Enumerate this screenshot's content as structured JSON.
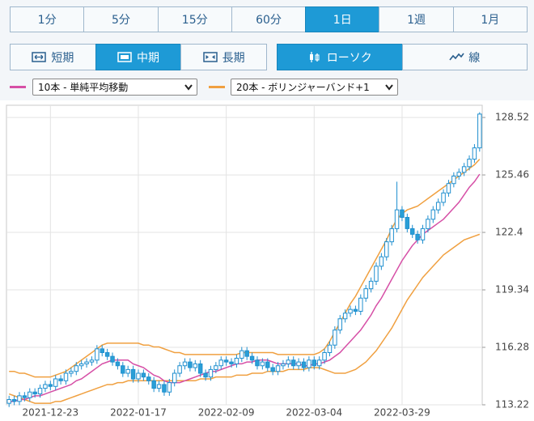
{
  "ui": {
    "timeframes": [
      "1分",
      "5分",
      "15分",
      "60分",
      "1日",
      "1週",
      "1月"
    ],
    "active_timeframe": 4,
    "ranges": [
      "短期",
      "中期",
      "長期"
    ],
    "active_range": 1,
    "chart_types": [
      "ローソク",
      "線"
    ],
    "active_chart_type": 0
  },
  "chart_data": {
    "type": "candlestick",
    "categories": [
      null,
      null,
      null,
      null,
      null,
      null,
      null,
      null,
      "2021-12-23",
      null,
      null,
      null,
      null,
      null,
      null,
      null,
      null,
      null,
      null,
      null,
      null,
      null,
      null,
      null,
      null,
      "2022-01-17",
      null,
      null,
      null,
      null,
      null,
      null,
      null,
      null,
      null,
      null,
      null,
      null,
      null,
      null,
      null,
      null,
      "2022-02-09",
      null,
      null,
      null,
      null,
      null,
      null,
      null,
      null,
      null,
      null,
      null,
      null,
      null,
      null,
      null,
      null,
      "2022-03-04",
      null,
      null,
      null,
      null,
      null,
      null,
      null,
      null,
      null,
      null,
      null,
      null,
      null,
      null,
      null,
      null,
      "2022-03-29",
      null,
      null,
      null,
      null,
      null,
      null,
      null,
      null,
      null,
      null,
      null,
      null,
      null,
      null,
      null
    ],
    "open": [
      113.3,
      113.5,
      113.4,
      113.7,
      113.6,
      113.9,
      113.8,
      114.1,
      114.3,
      114.2,
      114.6,
      114.5,
      114.9,
      115.0,
      115.3,
      115.4,
      115.5,
      115.6,
      116.2,
      116.0,
      115.8,
      115.5,
      115.3,
      114.9,
      115.1,
      114.6,
      114.9,
      114.7,
      114.5,
      114.1,
      114.3,
      113.9,
      114.4,
      114.9,
      115.3,
      115.5,
      115.2,
      115.4,
      114.9,
      114.7,
      115.1,
      115.3,
      115.6,
      115.5,
      115.4,
      115.7,
      116.1,
      115.8,
      115.6,
      115.3,
      115.5,
      115.2,
      115.0,
      115.3,
      115.4,
      115.6,
      115.3,
      115.5,
      115.2,
      115.6,
      115.3,
      115.6,
      116.0,
      116.4,
      117.2,
      117.8,
      118.1,
      118.3,
      118.2,
      118.9,
      119.4,
      119.8,
      120.6,
      121.1,
      121.9,
      122.6,
      123.6,
      123.2,
      122.6,
      122.3,
      122.0,
      122.6,
      123.1,
      123.6,
      124.0,
      124.5,
      125.0,
      125.4,
      125.6,
      125.9,
      126.3,
      126.9
    ],
    "high": [
      113.7,
      113.7,
      113.9,
      113.9,
      114.1,
      114.1,
      114.3,
      114.5,
      114.5,
      114.8,
      114.8,
      115.1,
      115.2,
      115.5,
      115.6,
      115.7,
      115.8,
      116.4,
      116.4,
      116.2,
      116.0,
      115.7,
      115.5,
      115.3,
      115.3,
      115.1,
      115.1,
      114.9,
      114.7,
      114.5,
      114.5,
      114.6,
      115.1,
      115.5,
      115.7,
      115.7,
      115.6,
      115.6,
      115.1,
      115.3,
      115.5,
      115.8,
      115.8,
      115.7,
      115.9,
      116.3,
      116.3,
      116.0,
      115.8,
      115.7,
      115.7,
      115.4,
      115.5,
      115.6,
      115.8,
      115.8,
      115.7,
      115.7,
      115.8,
      115.8,
      115.8,
      116.2,
      116.6,
      117.4,
      118.0,
      118.3,
      118.5,
      118.5,
      119.1,
      119.6,
      120.0,
      120.8,
      121.3,
      122.1,
      122.8,
      125.1,
      123.8,
      123.4,
      122.8,
      122.5,
      122.8,
      123.3,
      123.8,
      124.2,
      124.7,
      125.2,
      125.6,
      125.8,
      126.1,
      126.5,
      127.1,
      128.8
    ],
    "low": [
      113.1,
      113.2,
      113.2,
      113.4,
      113.4,
      113.6,
      113.6,
      113.9,
      114.0,
      114.0,
      114.3,
      114.3,
      114.7,
      114.8,
      115.1,
      115.2,
      115.3,
      115.4,
      115.8,
      115.6,
      115.3,
      115.1,
      114.7,
      114.7,
      114.4,
      114.4,
      114.5,
      114.3,
      113.9,
      113.9,
      113.7,
      113.7,
      114.2,
      114.7,
      115.1,
      115.0,
      115.0,
      114.7,
      114.5,
      114.5,
      114.9,
      115.1,
      115.3,
      115.2,
      115.2,
      115.5,
      115.6,
      115.4,
      115.1,
      115.1,
      115.0,
      114.8,
      114.8,
      115.1,
      115.2,
      115.1,
      115.1,
      115.0,
      115.0,
      115.1,
      115.1,
      115.4,
      115.8,
      116.2,
      117.0,
      117.6,
      117.9,
      118.0,
      118.0,
      118.7,
      119.2,
      119.6,
      120.4,
      120.9,
      121.7,
      122.4,
      123.0,
      122.4,
      122.1,
      121.8,
      121.8,
      122.4,
      122.9,
      123.4,
      123.8,
      124.3,
      124.8,
      125.2,
      125.4,
      125.7,
      126.1,
      126.7
    ],
    "close": [
      113.5,
      113.4,
      113.7,
      113.6,
      113.9,
      113.8,
      114.1,
      114.3,
      114.2,
      114.6,
      114.5,
      114.9,
      115.0,
      115.3,
      115.4,
      115.5,
      115.6,
      116.2,
      116.0,
      115.8,
      115.5,
      115.3,
      114.9,
      115.1,
      114.6,
      114.9,
      114.7,
      114.5,
      114.1,
      114.3,
      113.9,
      114.4,
      114.9,
      115.3,
      115.5,
      115.2,
      115.4,
      114.9,
      114.7,
      115.1,
      115.3,
      115.6,
      115.5,
      115.4,
      115.7,
      116.1,
      115.8,
      115.6,
      115.3,
      115.5,
      115.2,
      115.0,
      115.3,
      115.4,
      115.6,
      115.3,
      115.5,
      115.2,
      115.6,
      115.3,
      115.6,
      116.0,
      116.4,
      117.2,
      117.8,
      118.1,
      118.3,
      118.2,
      118.9,
      119.4,
      119.8,
      120.6,
      121.1,
      121.9,
      122.6,
      123.6,
      123.2,
      122.6,
      122.3,
      122.0,
      122.6,
      123.1,
      123.6,
      124.0,
      124.5,
      125.0,
      125.4,
      125.6,
      125.9,
      126.3,
      126.9,
      128.7
    ],
    "up_color": "#ffffff",
    "down_color": "#2a9fd6",
    "candle_stroke": "#1f8fcf",
    "series": [
      {
        "name": "10本 - 単純平均移動",
        "color": "#d64fa6",
        "values": [
          113.4,
          113.4,
          113.5,
          113.5,
          113.6,
          113.7,
          113.7,
          113.8,
          113.9,
          114.0,
          114.1,
          114.2,
          114.3,
          114.5,
          114.6,
          114.8,
          115.0,
          115.2,
          115.4,
          115.5,
          115.6,
          115.6,
          115.6,
          115.6,
          115.4,
          115.3,
          115.2,
          115.0,
          114.8,
          114.7,
          114.5,
          114.4,
          114.4,
          114.4,
          114.5,
          114.6,
          114.7,
          114.8,
          114.9,
          115.0,
          115.0,
          115.1,
          115.2,
          115.3,
          115.4,
          115.4,
          115.5,
          115.5,
          115.6,
          115.6,
          115.6,
          115.5,
          115.4,
          115.4,
          115.4,
          115.4,
          115.4,
          115.3,
          115.3,
          115.4,
          115.4,
          115.5,
          115.6,
          115.8,
          116.0,
          116.3,
          116.6,
          116.9,
          117.2,
          117.6,
          118.0,
          118.5,
          118.9,
          119.4,
          119.9,
          120.4,
          120.9,
          121.3,
          121.7,
          122.0,
          122.3,
          122.5,
          122.7,
          122.9,
          123.1,
          123.4,
          123.7,
          124.0,
          124.4,
          124.8,
          125.1,
          125.5
        ]
      },
      {
        "name": "20本 - ボリンジャーバンド+1",
        "color": "#f0a040",
        "upper": [
          115.0,
          115.0,
          114.9,
          114.9,
          114.8,
          114.7,
          114.7,
          114.7,
          114.7,
          114.8,
          114.9,
          115.0,
          115.2,
          115.4,
          115.6,
          115.8,
          116.0,
          116.2,
          116.4,
          116.5,
          116.5,
          116.5,
          116.5,
          116.5,
          116.5,
          116.5,
          116.4,
          116.4,
          116.3,
          116.3,
          116.2,
          116.1,
          116.0,
          116.0,
          115.9,
          115.9,
          115.9,
          115.9,
          115.9,
          115.9,
          115.9,
          115.9,
          115.9,
          115.9,
          115.9,
          116.0,
          116.0,
          116.0,
          116.0,
          116.0,
          116.0,
          116.0,
          115.9,
          115.9,
          115.9,
          115.9,
          115.9,
          115.9,
          115.9,
          115.9,
          116.0,
          116.2,
          116.6,
          117.1,
          117.6,
          118.1,
          118.6,
          119.0,
          119.5,
          120.0,
          120.5,
          121.0,
          121.5,
          122.0,
          122.6,
          123.1,
          123.4,
          123.6,
          123.7,
          123.8,
          124.0,
          124.2,
          124.4,
          124.6,
          124.8,
          125.0,
          125.2,
          125.4,
          125.6,
          125.8,
          126.0,
          126.3
        ],
        "lower": [
          113.8,
          113.7,
          113.6,
          113.5,
          113.4,
          113.3,
          113.3,
          113.3,
          113.3,
          113.4,
          113.4,
          113.5,
          113.6,
          113.7,
          113.8,
          113.9,
          114.0,
          114.1,
          114.2,
          114.3,
          114.3,
          114.4,
          114.4,
          114.5,
          114.5,
          114.5,
          114.5,
          114.5,
          114.5,
          114.5,
          114.5,
          114.5,
          114.5,
          114.5,
          114.5,
          114.5,
          114.5,
          114.6,
          114.6,
          114.6,
          114.7,
          114.7,
          114.7,
          114.7,
          114.8,
          114.8,
          114.8,
          114.9,
          114.9,
          114.9,
          115.0,
          115.0,
          115.0,
          115.0,
          115.1,
          115.1,
          115.1,
          115.1,
          115.2,
          115.2,
          115.2,
          115.1,
          115.0,
          114.9,
          114.9,
          114.9,
          115.0,
          115.1,
          115.3,
          115.5,
          115.8,
          116.1,
          116.5,
          116.9,
          117.3,
          117.8,
          118.3,
          118.8,
          119.2,
          119.6,
          120.0,
          120.3,
          120.6,
          120.9,
          121.2,
          121.4,
          121.6,
          121.8,
          122.0,
          122.1,
          122.2,
          122.3
        ]
      }
    ],
    "ylim": [
      113.22,
      129.17
    ],
    "yticks": [
      113.22,
      116.28,
      119.34,
      122.4,
      125.46,
      128.52
    ],
    "grid": true
  }
}
